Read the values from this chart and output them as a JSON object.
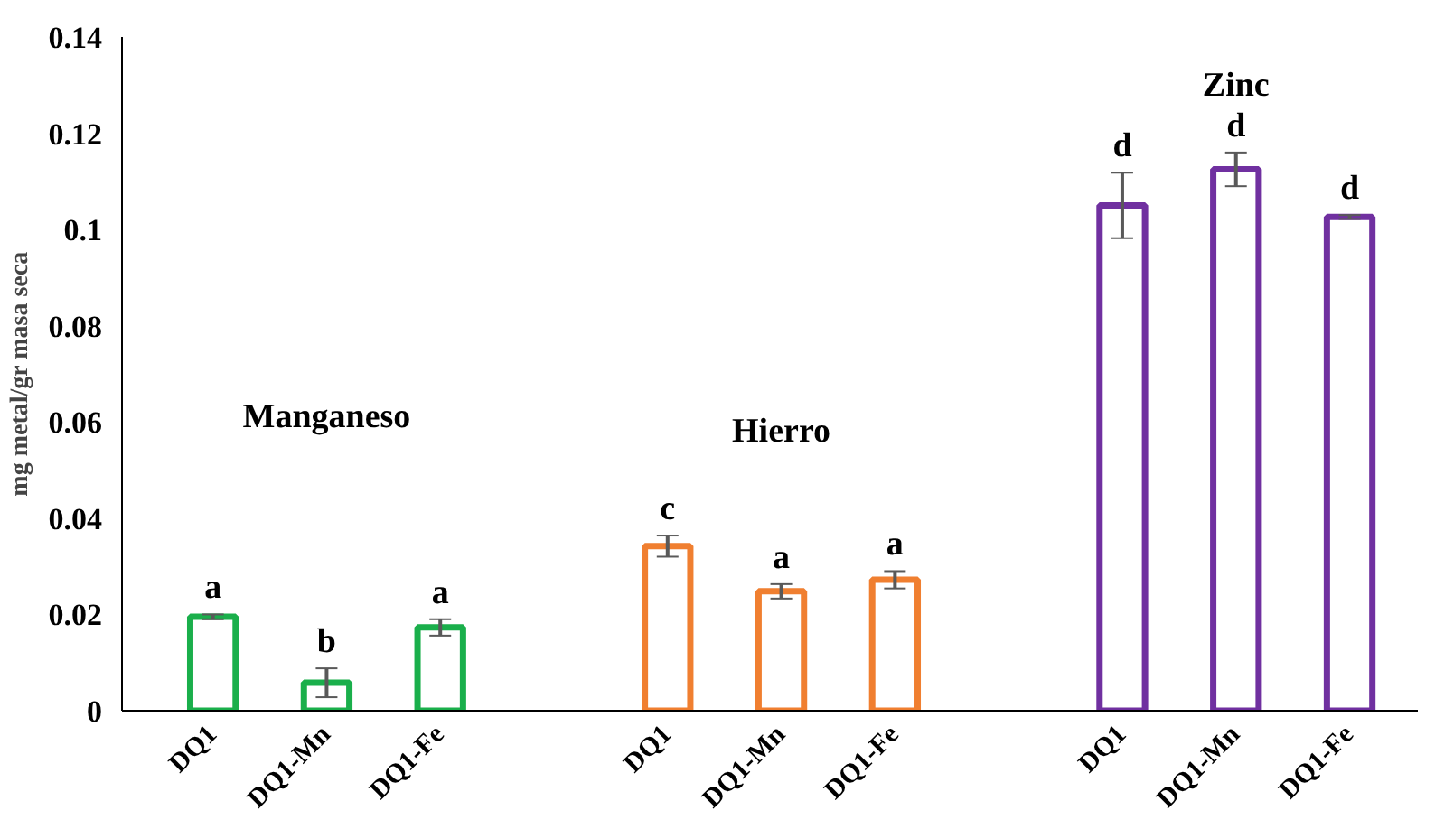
{
  "chart_data": {
    "type": "bar",
    "ylabel": "mg metal/gr masa seca",
    "categories": [
      "DQ1",
      "DQ1-Mn",
      "DQ1-Fe",
      null,
      "DQ1",
      "DQ1-Mn",
      "DQ1-Fe",
      null,
      "DQ1",
      "DQ1-Mn",
      "DQ1-Fe"
    ],
    "values": [
      0.0195,
      0.0058,
      0.0173,
      null,
      0.0342,
      0.0248,
      0.0272,
      null,
      0.105,
      0.1125,
      0.1026
    ],
    "errors": [
      0.0005,
      0.003,
      0.0017,
      null,
      0.0022,
      0.0015,
      0.0018,
      null,
      0.0068,
      0.0035,
      0.0004
    ],
    "colors": [
      "#1aaf4b",
      "#1aaf4b",
      "#1aaf4b",
      null,
      "#f07f30",
      "#f07f30",
      "#f07f30",
      null,
      "#7030a0",
      "#7030a0",
      "#7030a0"
    ],
    "value_labels": [
      "a",
      "b",
      "a",
      null,
      "c",
      "a",
      "a",
      null,
      "d",
      "d",
      "d"
    ],
    "annotations": [
      "Manganeso",
      "Hierro",
      "Zinc"
    ],
    "ylim": [
      0,
      0.14
    ],
    "yticks": [
      0,
      0.02,
      0.04,
      0.06,
      0.08,
      0.1,
      0.12,
      0.14
    ],
    "grid": false
  }
}
